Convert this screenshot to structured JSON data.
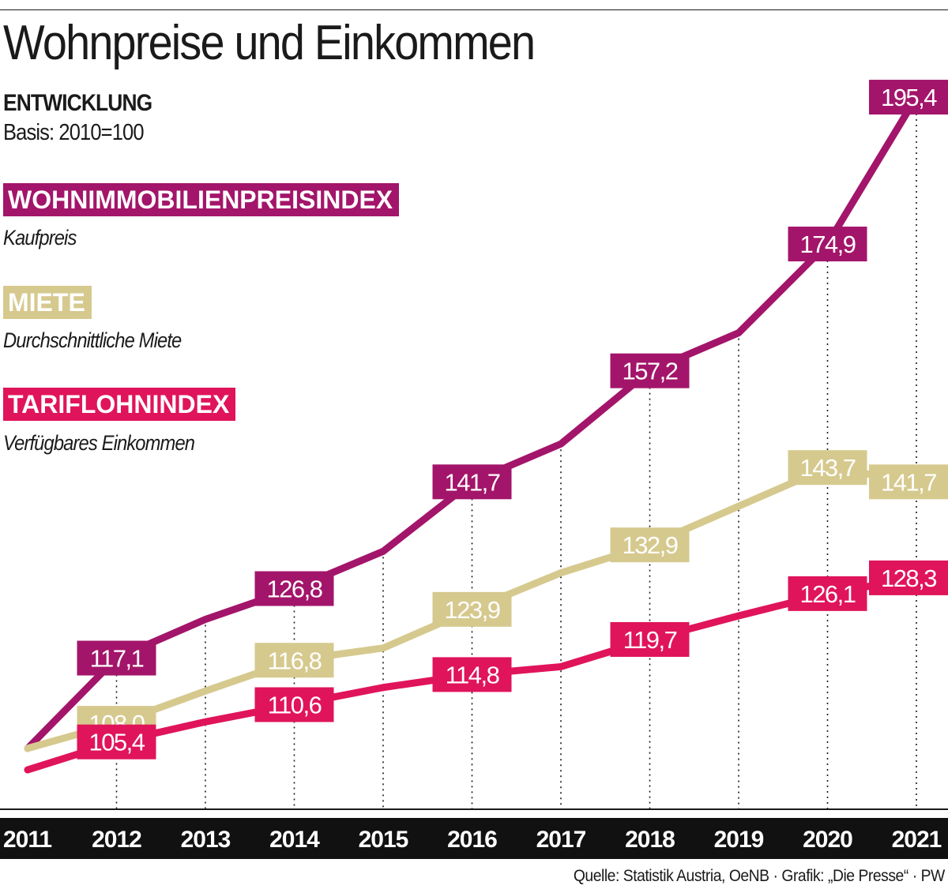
{
  "header": {
    "title": "Wohnpreise und Einkommen",
    "subtitle": "ENTWICKLUNG",
    "basis": "Basis: 2010=100"
  },
  "legend": [
    {
      "label": "WOHNIMMOBILIENPREISINDEX",
      "description": "Kaufpreis",
      "color": "#a3156a"
    },
    {
      "label": "MIETE",
      "description": "Durchschnittliche Miete",
      "color": "#d6c98e"
    },
    {
      "label": "TARIFLOHNINDEX",
      "description": "Verfügbares Einkommen",
      "color": "#e0145a"
    }
  ],
  "source": "Quelle: Statistik Austria, OeNB · Grafik: „Die Presse“ · PW",
  "chart_data": {
    "type": "line",
    "x": [
      "2011",
      "2012",
      "2013",
      "2014",
      "2015",
      "2016",
      "2017",
      "2018",
      "2019",
      "2020",
      "2021"
    ],
    "ylim": [
      96,
      204
    ],
    "grid": "dotted vertical lines at labelled years",
    "series": [
      {
        "name": "WOHNIMMOBILIENPREISINDEX",
        "color": "#a3156a",
        "values": [
          104.5,
          117.1,
          122.5,
          126.8,
          132.0,
          141.7,
          147.0,
          157.2,
          162.5,
          174.9,
          195.4
        ],
        "labels": [
          "",
          "117,1",
          "",
          "126,8",
          "",
          "141,7",
          "",
          "157,2",
          "",
          "174,9",
          "195,4"
        ]
      },
      {
        "name": "MIETE",
        "color": "#d6c98e",
        "values": [
          104.5,
          108.0,
          112.5,
          116.8,
          118.5,
          123.9,
          129.0,
          132.9,
          138.3,
          143.7,
          141.7
        ],
        "labels": [
          "",
          "108,0",
          "",
          "116,8",
          "",
          "123,9",
          "",
          "132,9",
          "",
          "143,7",
          "141,7"
        ]
      },
      {
        "name": "TARIFLOHNINDEX",
        "color": "#e0145a",
        "values": [
          101.5,
          105.4,
          108.2,
          110.6,
          113.0,
          114.8,
          115.9,
          119.7,
          123.0,
          126.1,
          128.3
        ],
        "labels": [
          "",
          "105,4",
          "",
          "110,6",
          "",
          "114,8",
          "",
          "119,7",
          "",
          "126,1",
          "128,3"
        ]
      }
    ]
  }
}
